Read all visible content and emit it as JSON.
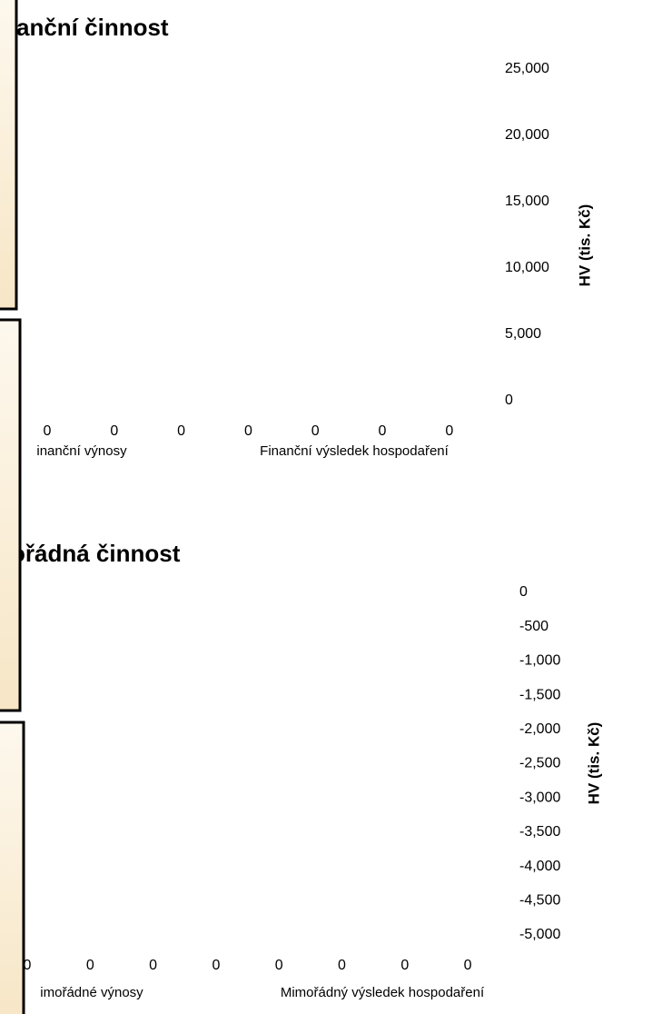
{
  "chart_data": [
    {
      "type": "bar",
      "title": "anční činnost",
      "y_label": "HV (tis. Kč)",
      "categories": [
        "inanční výnosy",
        null,
        null,
        null,
        "Finanční výsledek hospodaření",
        null,
        null
      ],
      "values": [
        0,
        0,
        0,
        0,
        0,
        0,
        0
      ],
      "ylim": [
        0,
        25000
      ],
      "yticks": [
        0,
        {
          "value": 5000,
          "label": "5,000"
        },
        {
          "value": 10000,
          "label": "10,000"
        },
        {
          "value": 15000,
          "label": "15,000"
        },
        {
          "value": 20000,
          "label": "20,000"
        },
        {
          "value": 25000,
          "label": "25,000"
        }
      ]
    },
    {
      "type": "bar",
      "title": "ořádná činnost",
      "y_label": "HV (tis. Kč)",
      "categories": [
        "imořádné výnosy",
        null,
        null,
        null,
        null,
        "Mimořádný výsledek hospodaření",
        null,
        null
      ],
      "values": [
        0,
        0,
        0,
        0,
        0,
        0,
        0,
        0
      ],
      "ylim": [
        -5000,
        0
      ],
      "yticks": [
        {
          "value": -5000,
          "label": "-5,000"
        },
        {
          "value": -4500,
          "label": "-4,500"
        },
        {
          "value": -4000,
          "label": "-4,000"
        },
        {
          "value": -3500,
          "label": "-3,500"
        },
        {
          "value": -3000,
          "label": "-3,000"
        },
        {
          "value": -2500,
          "label": "-2,500"
        },
        {
          "value": -2000,
          "label": "-2,000"
        },
        {
          "value": -1500,
          "label": "-1,500"
        },
        {
          "value": -1000,
          "label": "-1,000"
        },
        -500,
        0
      ]
    }
  ]
}
